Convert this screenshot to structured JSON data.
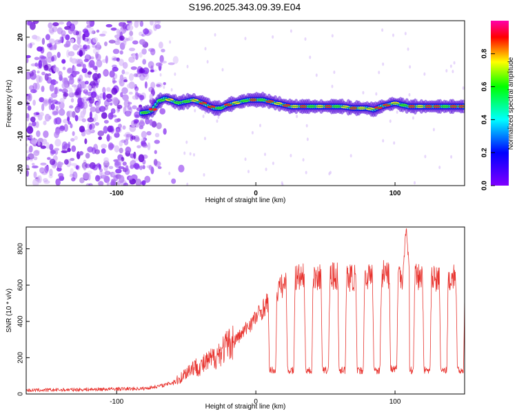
{
  "title": "S196.2025.343.09.39.E04",
  "chart_data": [
    {
      "type": "heatmap",
      "xlabel": "Height of straight line (km)",
      "ylabel": "Frequency (Hz)",
      "xlim": [
        -165,
        150
      ],
      "ylim": [
        -25,
        25
      ],
      "xticks": [
        -100,
        0,
        100
      ],
      "yticks": [
        -20,
        -10,
        0,
        10,
        20
      ],
      "x_tick_labels": [
        "-100",
        "0",
        "100"
      ],
      "y_tick_labels": [
        "-20",
        "-10",
        "0",
        "10",
        "20"
      ],
      "colorbar": {
        "label": "Normalized spectral amplitude",
        "range": [
          0,
          1
        ],
        "ticks": [
          0.0,
          0.2,
          0.4,
          0.6,
          0.8
        ],
        "tick_labels": [
          "0.0",
          "0.2",
          "0.4",
          "0.6",
          "0.8"
        ],
        "colormap": [
          "#7f00ff",
          "#0000ff",
          "#00ffff",
          "#00ff00",
          "#ffff00",
          "#ff0000",
          "#ff00aa"
        ]
      },
      "noise_region_x": [
        -165,
        -65
      ],
      "ridge": {
        "x": [
          -82,
          -75,
          -70,
          -65,
          -55,
          -45,
          -38,
          -30,
          -25,
          -20,
          -15,
          -10,
          -5,
          5,
          15,
          25,
          40,
          55,
          62,
          70,
          80,
          85,
          90,
          100,
          110,
          120,
          130,
          140,
          150
        ],
        "y": [
          -3,
          -2.5,
          0.5,
          1.5,
          0,
          1,
          0,
          -1.5,
          -1.5,
          -0.5,
          0,
          0.5,
          1,
          1,
          0,
          -1,
          -1,
          -1,
          -1,
          -1.5,
          -1.5,
          -2,
          -1,
          0,
          -1,
          -1,
          -1,
          -1,
          -1
        ],
        "color": "#1faa4a"
      }
    },
    {
      "type": "line",
      "xlabel": "Height of straight line (km)",
      "ylabel": "SNR (10 * v/v)",
      "xlim": [
        -165,
        150
      ],
      "ylim": [
        0,
        920
      ],
      "xticks": [
        -100,
        0,
        100
      ],
      "yticks": [
        0,
        200,
        400,
        600,
        800
      ],
      "x_tick_labels": [
        "-100",
        "0",
        "100"
      ],
      "y_tick_labels": [
        "0",
        "200",
        "400",
        "600",
        "800"
      ],
      "color": "#e8332e",
      "envelope": {
        "x": [
          -165,
          -120,
          -80,
          -65,
          -55,
          -50,
          -45,
          -40,
          -30,
          -20,
          -10,
          -5,
          0,
          5,
          10,
          15,
          20,
          25,
          30,
          50,
          70,
          90,
          100,
          110,
          120,
          130,
          140,
          150
        ],
        "y": [
          20,
          25,
          30,
          50,
          80,
          120,
          150,
          150,
          200,
          270,
          330,
          380,
          420,
          470,
          520,
          570,
          600,
          630,
          640,
          650,
          640,
          660,
          660,
          650,
          640,
          630,
          640,
          640
        ]
      },
      "dips": [
        {
          "x": 12,
          "value": 130
        },
        {
          "x": 25,
          "value": 130
        },
        {
          "x": 38,
          "value": 130
        },
        {
          "x": 50,
          "value": 130
        },
        {
          "x": 62,
          "value": 130
        },
        {
          "x": 75,
          "value": 130
        },
        {
          "x": 87,
          "value": 130
        },
        {
          "x": 99,
          "value": 140
        },
        {
          "x": 111,
          "value": 130
        },
        {
          "x": 123,
          "value": 130
        },
        {
          "x": 135,
          "value": 130
        },
        {
          "x": 147,
          "value": 130
        }
      ],
      "spike": {
        "x": 108,
        "value": 920
      }
    }
  ]
}
